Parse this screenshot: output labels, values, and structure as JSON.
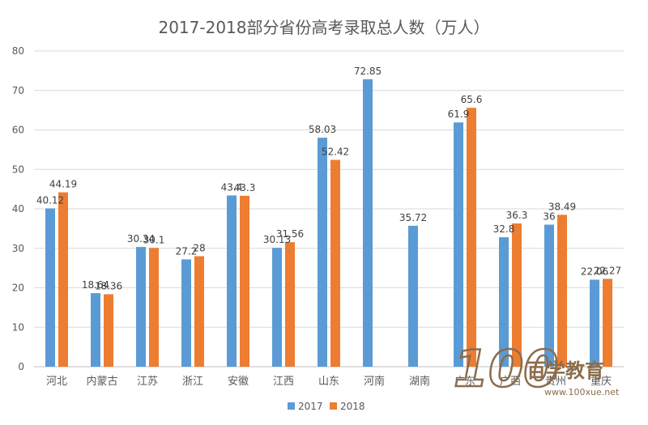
{
  "chart_data": {
    "type": "bar",
    "title": "2017-2018部分省份高考录取总人数（万人）",
    "categories": [
      "河北",
      "内蒙古",
      "江苏",
      "浙江",
      "安徽",
      "江西",
      "山东",
      "河南",
      "湖南",
      "广东",
      "广西",
      "贵州",
      "重庆"
    ],
    "series": [
      {
        "name": "2017",
        "color": "#5b9bd5",
        "values": [
          40.12,
          18.64,
          30.34,
          27.2,
          43.4,
          30.13,
          58.03,
          72.85,
          35.72,
          61.9,
          32.8,
          36,
          22.06
        ]
      },
      {
        "name": "2018",
        "color": "#ed7d31",
        "values": [
          44.19,
          18.36,
          30.1,
          28,
          43.3,
          31.56,
          52.42,
          null,
          null,
          65.6,
          36.3,
          38.49,
          22.27
        ]
      }
    ],
    "data_labels": [
      [
        "40.12",
        "18.64",
        "30.34",
        "27.2",
        "43.4",
        "30.13",
        "58.03",
        "72.85",
        "35.72",
        "61.9",
        "32.8",
        "36",
        "22.06"
      ],
      [
        "44.19",
        "18.36",
        "30.1",
        "28",
        "43.3",
        "31.56",
        "52.42",
        "",
        "",
        "65.6",
        "36.3",
        "38.49",
        "22.27"
      ]
    ],
    "ylim": [
      0,
      80
    ],
    "yticks": [
      "0",
      "10",
      "20",
      "30",
      "40",
      "50",
      "60",
      "70",
      "80"
    ],
    "xlabel": "",
    "ylabel": "",
    "grid": true,
    "legend_position": "bottom",
    "axis_color": "#d9d9d9",
    "text_color": "#595959"
  },
  "watermark": {
    "brand": "百学教育",
    "url": "www.100xue.net",
    "logo_text": "100",
    "color": "#8b6d4b"
  }
}
